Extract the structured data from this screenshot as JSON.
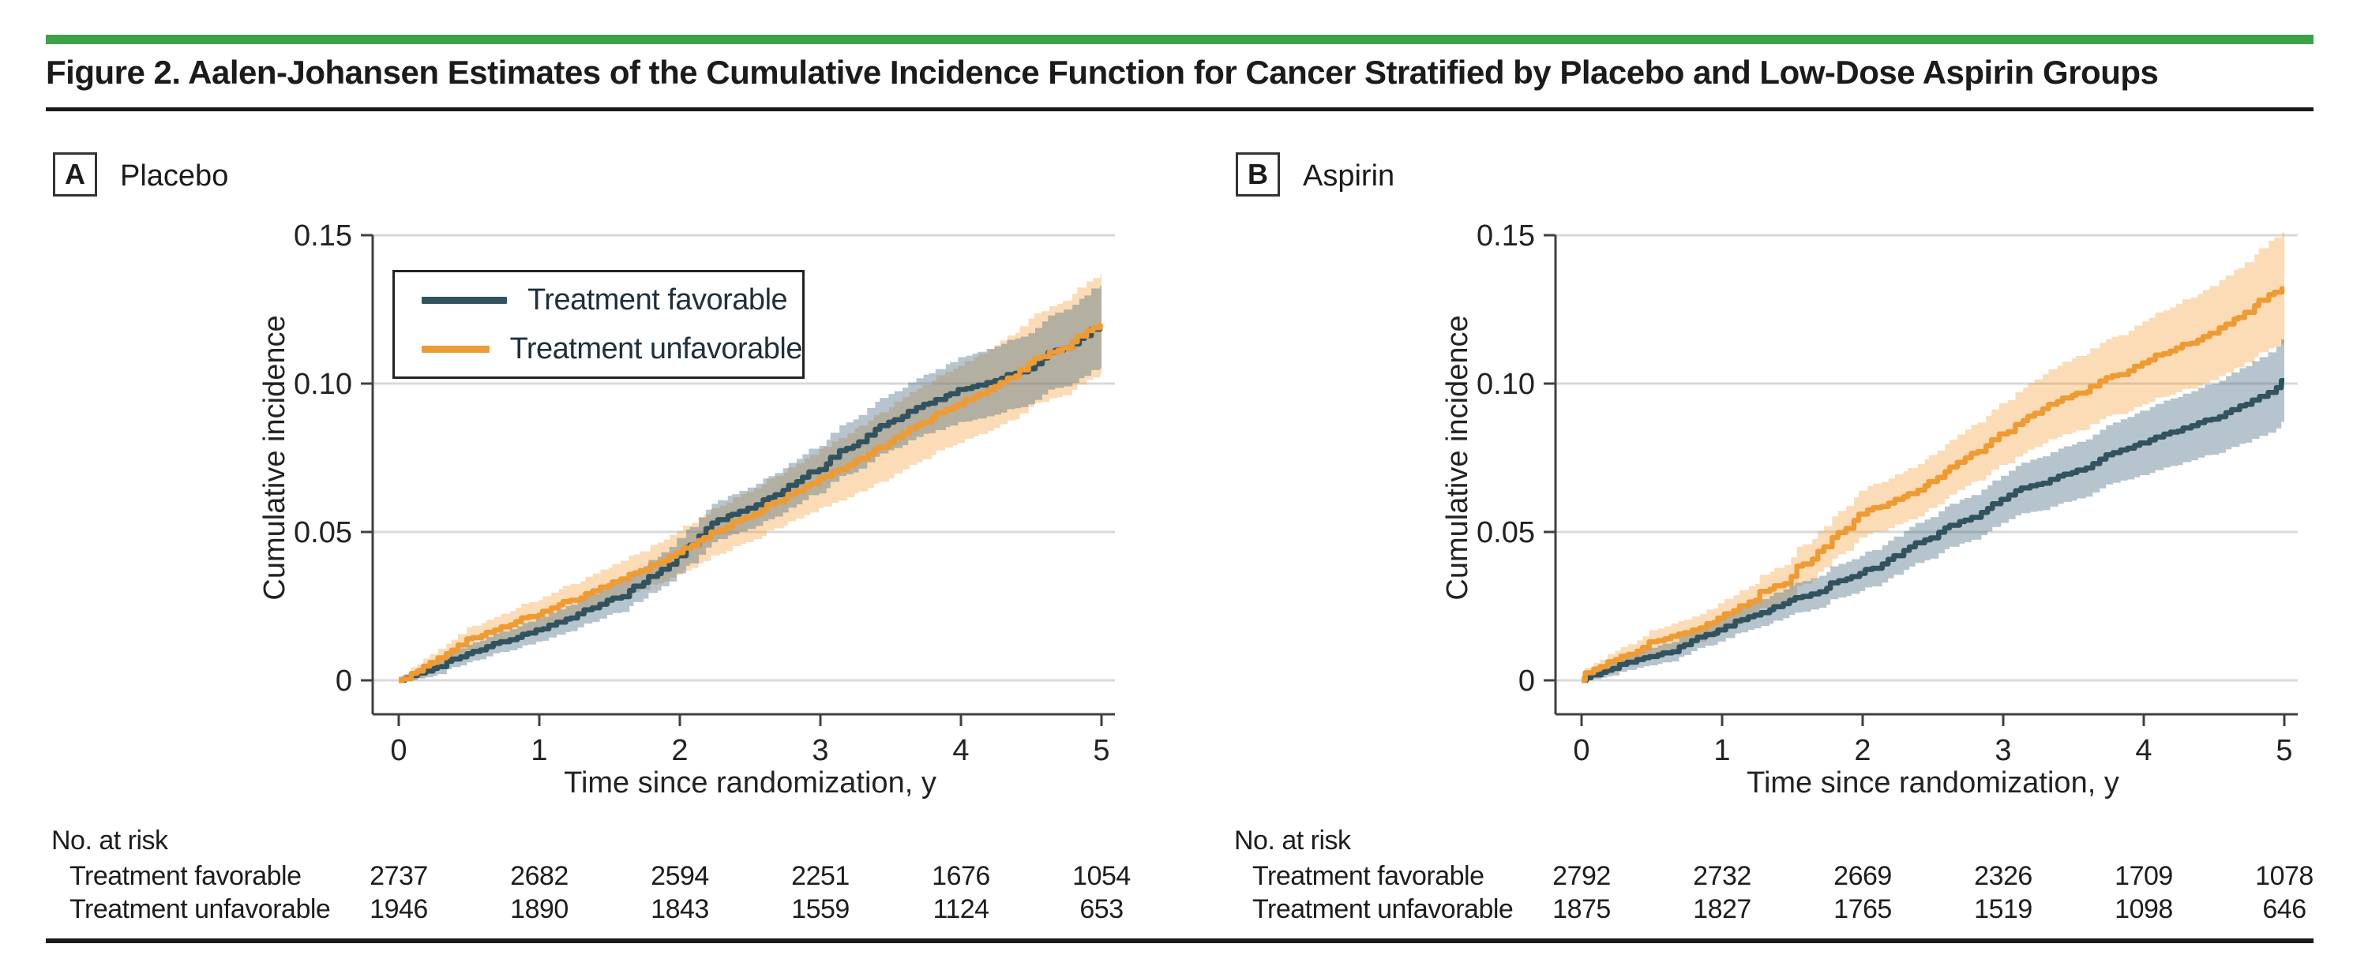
{
  "figure": {
    "title": "Figure 2. Aalen-Johansen Estimates of the Cumulative Incidence Function for Cancer Stratified by Placebo and Low-Dose Aspirin Groups",
    "accent_green": "#3DA148",
    "rule_color": "#1a1a1a"
  },
  "chart_data": [
    {
      "id": "placebo",
      "type": "line",
      "panel_letter": "A",
      "panel_title": "Placebo",
      "xlabel": "Time since randomization, y",
      "ylabel": "Cumulative incidence",
      "xlim": [
        0,
        5
      ],
      "ylim": [
        0,
        0.15
      ],
      "xticks": [
        0,
        1,
        2,
        3,
        4,
        5
      ],
      "xtick_labels": [
        "0",
        "1",
        "2",
        "3",
        "4",
        "5"
      ],
      "yticks": [
        0,
        0.05,
        0.1,
        0.15
      ],
      "ytick_labels": [
        "0",
        "0.05",
        "0.10",
        "0.15"
      ],
      "grid": "horizontal",
      "legend_position": "upper-left-inside",
      "x": [
        0,
        0.25,
        0.5,
        0.75,
        1,
        1.25,
        1.5,
        1.75,
        2,
        2.25,
        2.5,
        2.75,
        3,
        3.25,
        3.5,
        3.75,
        4,
        4.25,
        4.5,
        4.75,
        5
      ],
      "series": [
        {
          "name": "Treatment favorable",
          "color": "#31535F",
          "band_color": "rgba(72,107,130,0.40)",
          "values": [
            0,
            0.004,
            0.009,
            0.013,
            0.017,
            0.021,
            0.027,
            0.033,
            0.042,
            0.053,
            0.058,
            0.064,
            0.071,
            0.079,
            0.087,
            0.093,
            0.098,
            0.101,
            0.105,
            0.112,
            0.119
          ],
          "ci_half_width": [
            0.001,
            0.0025,
            0.003,
            0.0035,
            0.004,
            0.0045,
            0.005,
            0.0055,
            0.006,
            0.0065,
            0.007,
            0.0075,
            0.008,
            0.009,
            0.0095,
            0.01,
            0.011,
            0.0115,
            0.012,
            0.013,
            0.014
          ]
        },
        {
          "name": "Treatment unfavorable",
          "color": "#EE9B33",
          "band_color": "rgba(242,153,40,0.34)",
          "values": [
            0,
            0.006,
            0.014,
            0.018,
            0.022,
            0.027,
            0.032,
            0.037,
            0.043,
            0.05,
            0.055,
            0.061,
            0.068,
            0.074,
            0.08,
            0.087,
            0.093,
            0.099,
            0.107,
            0.112,
            0.12
          ],
          "ci_half_width": [
            0.0015,
            0.003,
            0.004,
            0.0045,
            0.005,
            0.0055,
            0.006,
            0.0065,
            0.0075,
            0.008,
            0.0085,
            0.009,
            0.01,
            0.011,
            0.012,
            0.0125,
            0.013,
            0.014,
            0.015,
            0.016,
            0.017
          ]
        }
      ],
      "at_risk": {
        "header": "No. at risk",
        "rows": [
          {
            "label": "Treatment favorable",
            "values": [
              "2737",
              "2682",
              "2594",
              "2251",
              "1676",
              "1054"
            ]
          },
          {
            "label": "Treatment unfavorable",
            "values": [
              "1946",
              "1890",
              "1843",
              "1559",
              "1124",
              "653"
            ]
          }
        ]
      }
    },
    {
      "id": "aspirin",
      "type": "line",
      "panel_letter": "B",
      "panel_title": "Aspirin",
      "xlabel": "Time since randomization, y",
      "ylabel": "Cumulative incidence",
      "xlim": [
        0,
        5
      ],
      "ylim": [
        0,
        0.15
      ],
      "xticks": [
        0,
        1,
        2,
        3,
        4,
        5
      ],
      "xtick_labels": [
        "0",
        "1",
        "2",
        "3",
        "4",
        "5"
      ],
      "yticks": [
        0,
        0.05,
        0.1,
        0.15
      ],
      "ytick_labels": [
        "0",
        "0.05",
        "0.10",
        "0.15"
      ],
      "grid": "horizontal",
      "legend_position": "none",
      "x": [
        0,
        0.25,
        0.5,
        0.75,
        1,
        1.25,
        1.5,
        1.75,
        2,
        2.25,
        2.5,
        2.75,
        3,
        3.25,
        3.5,
        3.75,
        4,
        4.25,
        4.5,
        4.75,
        5
      ],
      "series": [
        {
          "name": "Treatment favorable",
          "color": "#31535F",
          "band_color": "rgba(72,107,130,0.40)",
          "values": [
            0,
            0.004,
            0.008,
            0.012,
            0.017,
            0.022,
            0.027,
            0.031,
            0.036,
            0.042,
            0.048,
            0.054,
            0.061,
            0.066,
            0.07,
            0.076,
            0.08,
            0.084,
            0.088,
            0.093,
            0.101
          ],
          "ci_half_width": [
            0.001,
            0.0025,
            0.003,
            0.0035,
            0.004,
            0.0045,
            0.005,
            0.0055,
            0.006,
            0.0065,
            0.007,
            0.0075,
            0.008,
            0.009,
            0.0095,
            0.01,
            0.011,
            0.0115,
            0.012,
            0.013,
            0.014
          ]
        },
        {
          "name": "Treatment unfavorable",
          "color": "#EE9B33",
          "band_color": "rgba(242,153,40,0.34)",
          "values": [
            0,
            0.007,
            0.013,
            0.016,
            0.021,
            0.027,
            0.035,
            0.045,
            0.056,
            0.061,
            0.067,
            0.075,
            0.083,
            0.09,
            0.096,
            0.102,
            0.107,
            0.112,
            0.117,
            0.124,
            0.132
          ],
          "ci_half_width": [
            0.0015,
            0.003,
            0.004,
            0.0045,
            0.005,
            0.0055,
            0.0065,
            0.007,
            0.008,
            0.0085,
            0.009,
            0.0095,
            0.0105,
            0.0115,
            0.0125,
            0.013,
            0.014,
            0.015,
            0.016,
            0.017,
            0.019
          ]
        }
      ],
      "at_risk": {
        "header": "No. at risk",
        "rows": [
          {
            "label": "Treatment favorable",
            "values": [
              "2792",
              "2732",
              "2669",
              "2326",
              "1709",
              "1078"
            ]
          },
          {
            "label": "Treatment unfavorable",
            "values": [
              "1875",
              "1827",
              "1765",
              "1519",
              "1098",
              "646"
            ]
          }
        ]
      }
    }
  ]
}
